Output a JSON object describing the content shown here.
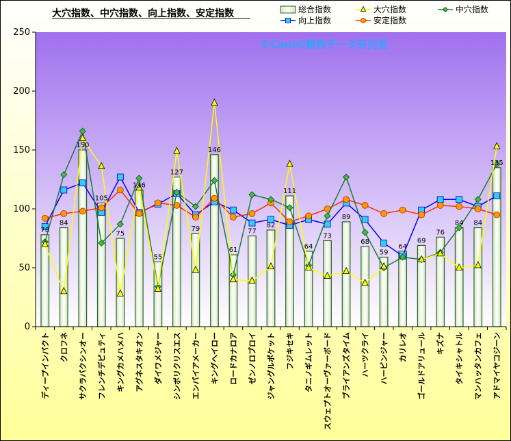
{
  "chart_data": {
    "type": "bar",
    "title": "大穴指数、中穴指数、向上指数、安定指数",
    "watermark": "©Caniの競馬データ研究室",
    "ylim": [
      0,
      250
    ],
    "yticks": [
      "0",
      "50",
      "100",
      "150",
      "200",
      "250"
    ],
    "grid": false,
    "legend_position": "top-right",
    "categories": [
      "ディープインパクト",
      "クロフネ",
      "サクラバクシンオー",
      "フレンチデピュティ",
      "キングカメハメハ",
      "アグネスタキオン",
      "ダイワメジャー",
      "シンボリクリスエス",
      "エンパイアメーカー",
      "キングヘイロー",
      "ロードカナロア",
      "ゼンノロブロイ",
      "ジャングルポケット",
      "フジキセキ",
      "タニノギムレット",
      "スウェプトオーヴァーボード",
      "ブライアンズタイム",
      "ハーツクライ",
      "ハービンジャー",
      "カリレオ",
      "ゴールドアリュール",
      "キズナ",
      "タイキシャトル",
      "マンハッタンカフェ",
      "アドマイヤコジーン"
    ],
    "series": [
      {
        "name": "総合指数",
        "kind": "bar",
        "color": "#2e5e2e",
        "values": [
          78,
          84,
          150,
          105,
          75,
          116,
          55,
          127,
          79,
          146,
          61,
          77,
          82,
          111,
          64,
          73,
          89,
          68,
          59,
          64,
          69,
          76,
          84,
          84,
          135
        ],
        "labels": [
          "78",
          "84",
          "150",
          "105",
          "75",
          "116",
          "55",
          "127",
          "79",
          "146",
          "61",
          "77",
          "82",
          "111",
          "64",
          "73",
          "89",
          "68",
          "59",
          "64",
          "69",
          "76",
          "84",
          "84",
          "135"
        ]
      },
      {
        "name": "大穴指数",
        "kind": "line",
        "color": "#ffff00",
        "marker": "triangle",
        "values": [
          70,
          30,
          160,
          136,
          28,
          118,
          32,
          149,
          48,
          190,
          40,
          39,
          51,
          138,
          50,
          43,
          47,
          37,
          51,
          null,
          57,
          62,
          50,
          52,
          153
        ]
      },
      {
        "name": "中穴指数",
        "kind": "line",
        "color": "#1a7a3a",
        "marker": "diamond",
        "values": [
          72,
          129,
          166,
          71,
          87,
          126,
          34,
          114,
          102,
          124,
          44,
          112,
          108,
          101,
          52,
          94,
          127,
          80,
          50,
          59,
          57,
          63,
          84,
          108,
          138
        ]
      },
      {
        "name": "向上指数",
        "kind": "line",
        "color": "#0000ff",
        "marker": "square",
        "values": [
          85,
          116,
          122,
          97,
          127,
          97,
          104,
          113,
          95,
          106,
          99,
          88,
          91,
          86,
          91,
          87,
          105,
          91,
          71,
          60,
          99,
          108,
          108,
          102,
          111
        ]
      },
      {
        "name": "安定指数",
        "kind": "line",
        "color": "#ff2a00",
        "marker": "circle",
        "values": [
          92,
          96,
          98,
          101,
          116,
          96,
          105,
          103,
          93,
          109,
          93,
          96,
          105,
          89,
          94,
          100,
          108,
          103,
          96,
          99,
          95,
          103,
          102,
          100,
          95
        ]
      }
    ]
  }
}
